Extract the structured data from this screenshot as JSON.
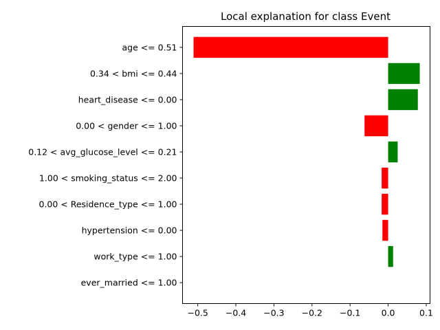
{
  "chart_data": {
    "type": "bar",
    "orientation": "horizontal",
    "title": "Local explanation for class Event",
    "xlabel": "",
    "ylabel": "",
    "xlim": [
      -0.54,
      0.11
    ],
    "xticks": [
      -0.5,
      -0.4,
      -0.3,
      -0.2,
      -0.1,
      0.0,
      0.1
    ],
    "xtick_labels": [
      "−0.5",
      "−0.4",
      "−0.3",
      "−0.2",
      "−0.1",
      "0.0",
      "0.1"
    ],
    "categories": [
      "age <= 0.51",
      "0.34 < bmi <= 0.44",
      "heart_disease <= 0.00",
      "0.00 < gender <= 1.00",
      "0.12 < avg_glucose_level <= 0.21",
      "1.00 < smoking_status <= 2.00",
      "0.00 < Residence_type <= 1.00",
      "hypertension <= 0.00",
      "work_type <= 1.00",
      "ever_married <= 1.00"
    ],
    "values": [
      -0.511,
      0.083,
      0.078,
      -0.062,
      0.025,
      -0.017,
      -0.017,
      -0.015,
      0.013,
      0.0
    ],
    "colors": {
      "positive": "#008000",
      "negative": "#ff0000"
    },
    "grid": false,
    "legend": "none"
  }
}
